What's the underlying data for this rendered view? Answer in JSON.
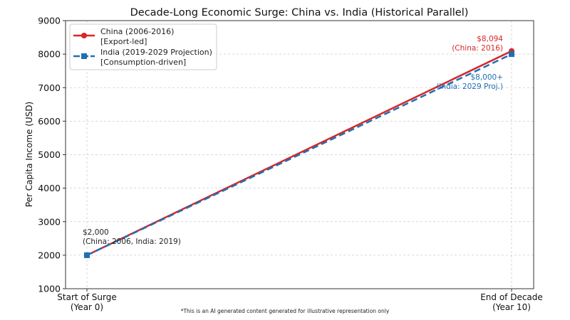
{
  "chart_data": {
    "type": "line",
    "title": "Decade-Long Economic Surge: China vs. India (Historical Parallel)",
    "xlabel": "",
    "ylabel": "Per Capita Income (USD)",
    "ylim": [
      1000,
      9000
    ],
    "yticks": [
      1000,
      2000,
      3000,
      4000,
      5000,
      6000,
      7000,
      8000,
      9000
    ],
    "x": [
      0,
      10
    ],
    "xticks": [
      {
        "value": 0,
        "lines": [
          "Start of Surge",
          "(Year 0)"
        ]
      },
      {
        "value": 10,
        "lines": [
          "End of Decade",
          "(Year 10)"
        ]
      }
    ],
    "grid": true,
    "legend_position": "top-left",
    "series": [
      {
        "name": "China (2006-2016)",
        "subname": "[Export-led]",
        "color": "#d62728",
        "style": "solid",
        "marker": "circle",
        "values": [
          2000,
          8094
        ]
      },
      {
        "name": "India (2019-2029 Projection)",
        "subname": "[Consumption-driven]",
        "color": "#1f6fb5",
        "style": "dashed",
        "marker": "square",
        "values": [
          2000,
          8000
        ]
      }
    ],
    "annotations": [
      {
        "lines": [
          "$2,000",
          "(China: 2006, India: 2019)"
        ],
        "color": "#222222"
      },
      {
        "lines": [
          "$8,094",
          "(China: 2016)"
        ],
        "color": "#d62728"
      },
      {
        "lines": [
          "$8,000+",
          "(India: 2029 Proj.)"
        ],
        "color": "#1f6fb5"
      }
    ]
  },
  "footnote": "*This is an AI generated content generated for illustrative representation only"
}
